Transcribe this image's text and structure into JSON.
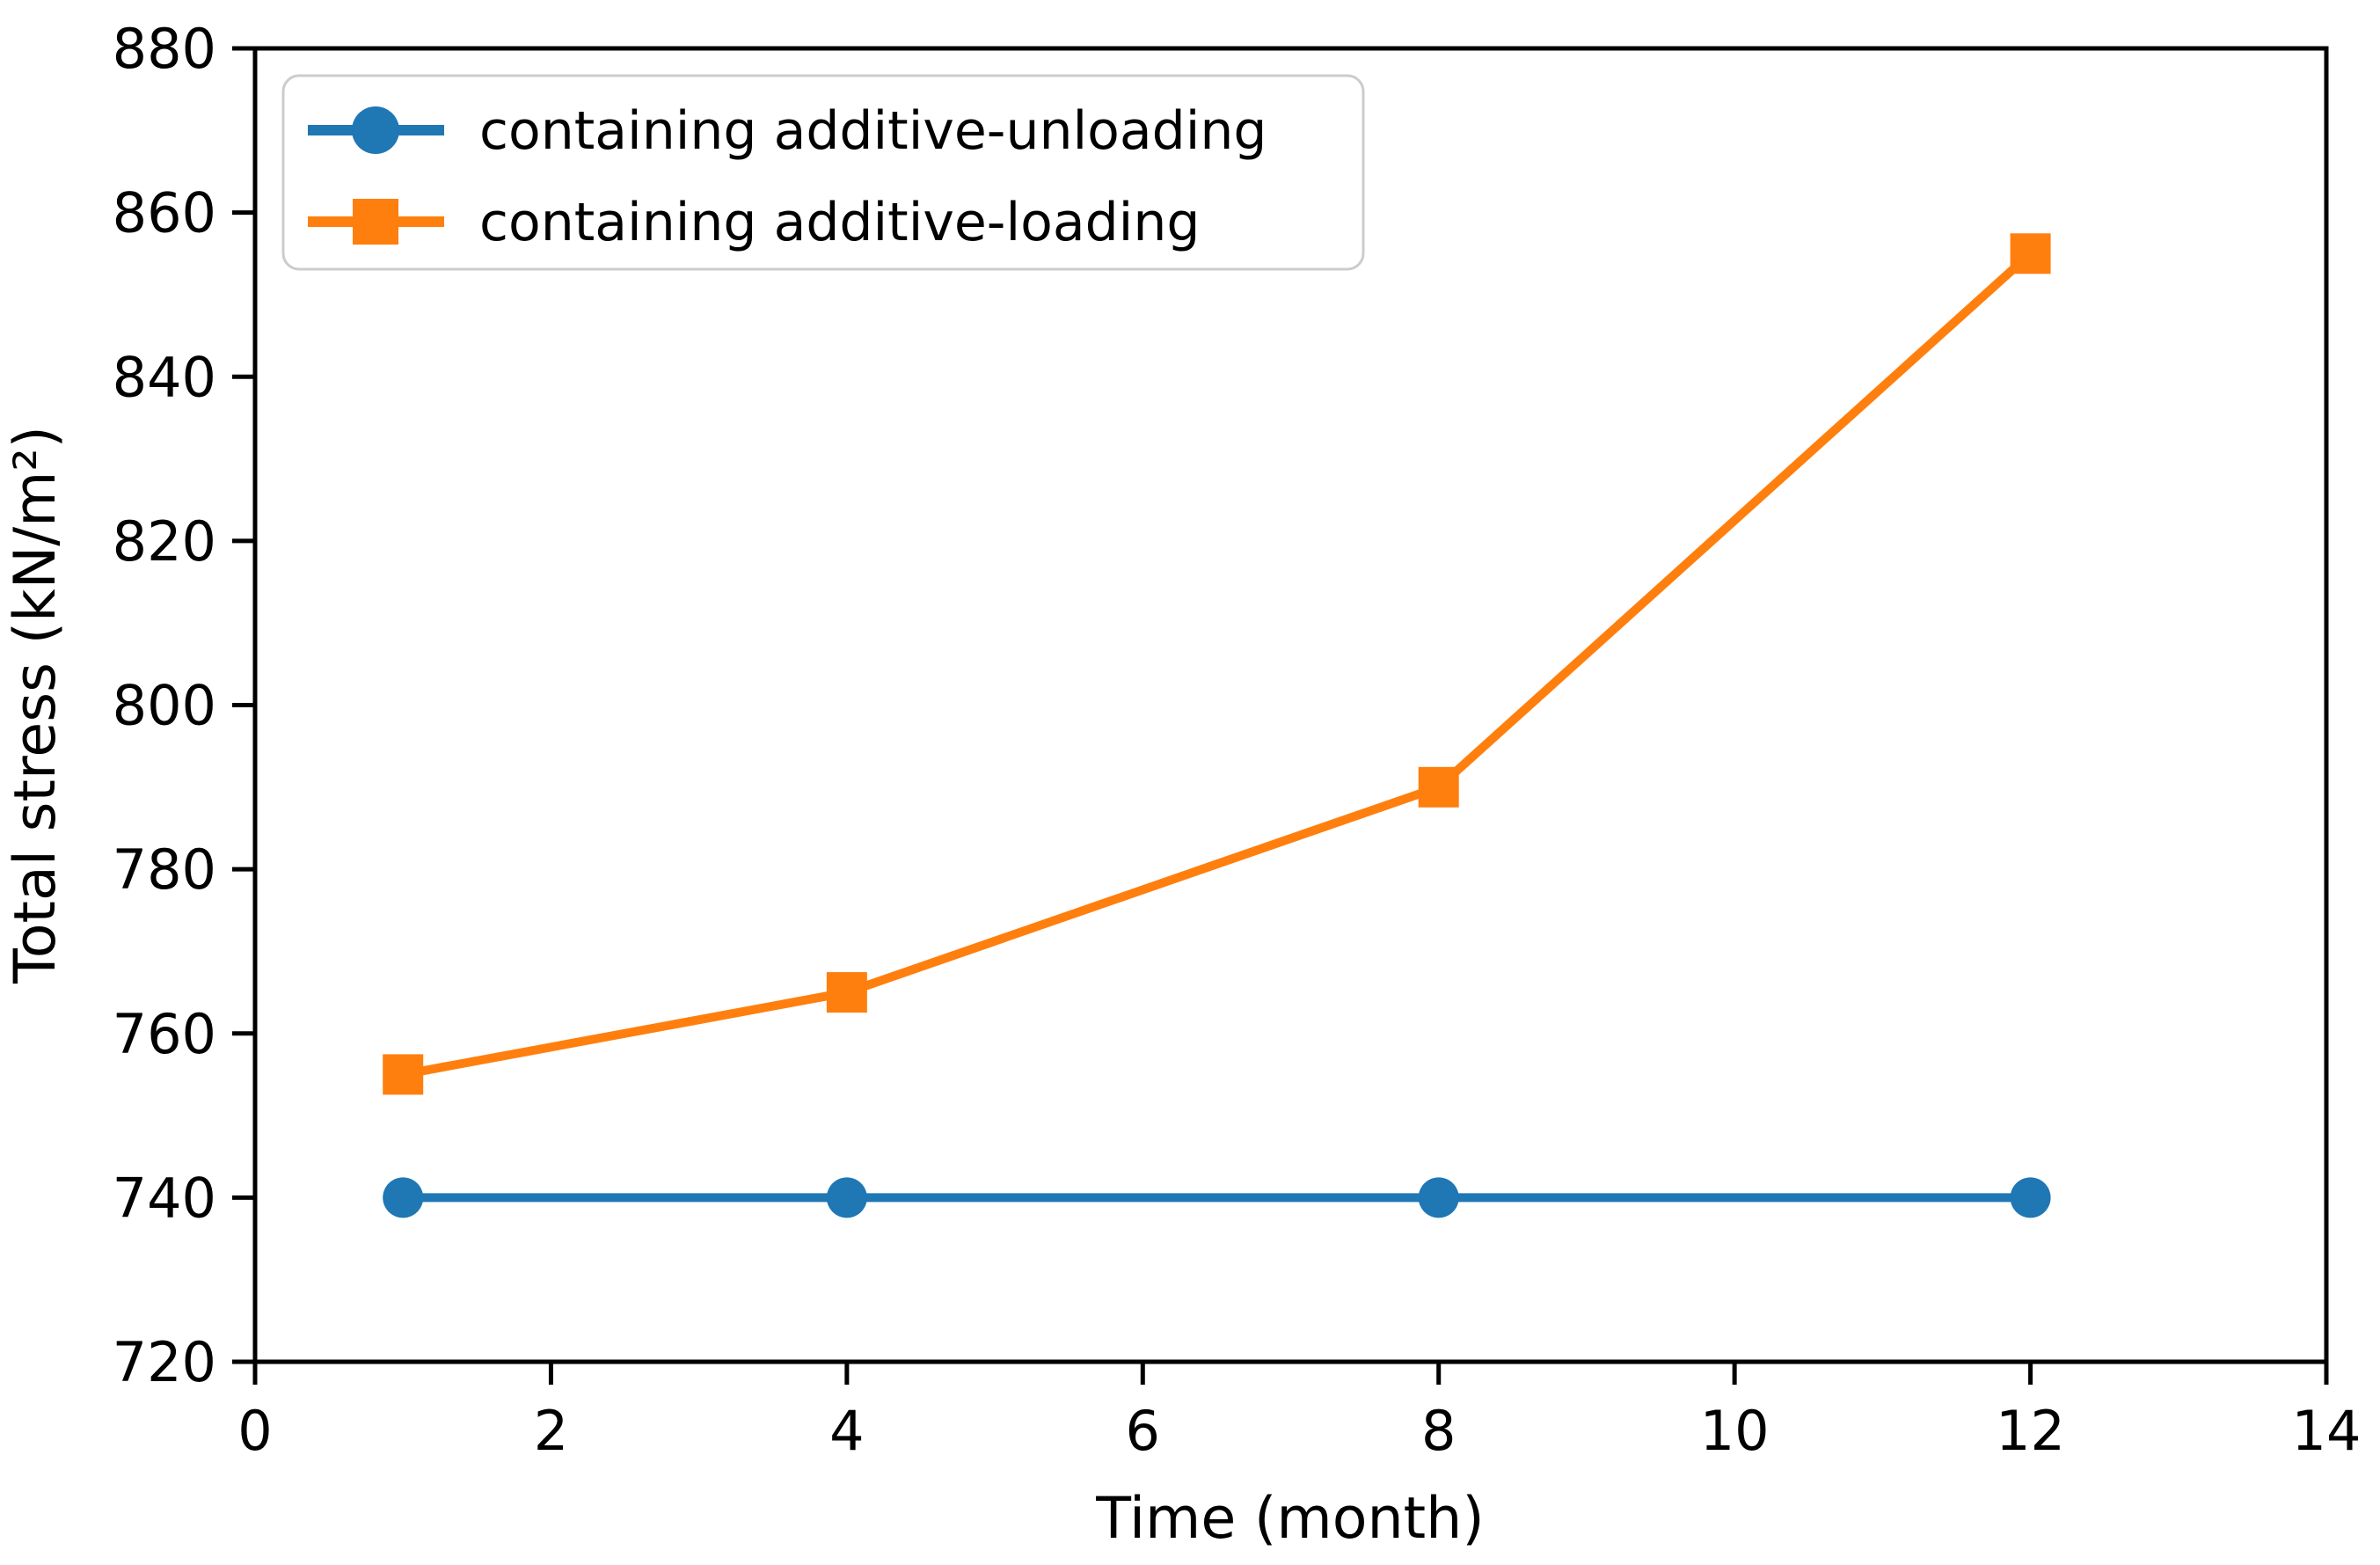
{
  "chart_data": {
    "type": "line",
    "title": "",
    "xlabel": "Time (month)",
    "ylabel": "Total stress (kN/m²)",
    "xlim": [
      0,
      14
    ],
    "ylim": [
      720,
      880
    ],
    "xticks": [
      0,
      2,
      4,
      6,
      8,
      10,
      12,
      14
    ],
    "yticks": [
      720,
      740,
      760,
      780,
      800,
      820,
      840,
      860,
      880
    ],
    "grid": false,
    "legend_position": "upper left",
    "x": [
      1,
      4,
      8,
      12
    ],
    "series": [
      {
        "name": "containing additive-unloading",
        "values": [
          740,
          740,
          740,
          740
        ],
        "color": "#1f77b4",
        "marker": "circle"
      },
      {
        "name": "containing additive-loading",
        "values": [
          755,
          765,
          790,
          855
        ],
        "color": "#ff7f0e",
        "marker": "square"
      }
    ]
  },
  "colors": {
    "axis": "#000000",
    "legend_border": "#cccccc",
    "background": "#ffffff"
  }
}
